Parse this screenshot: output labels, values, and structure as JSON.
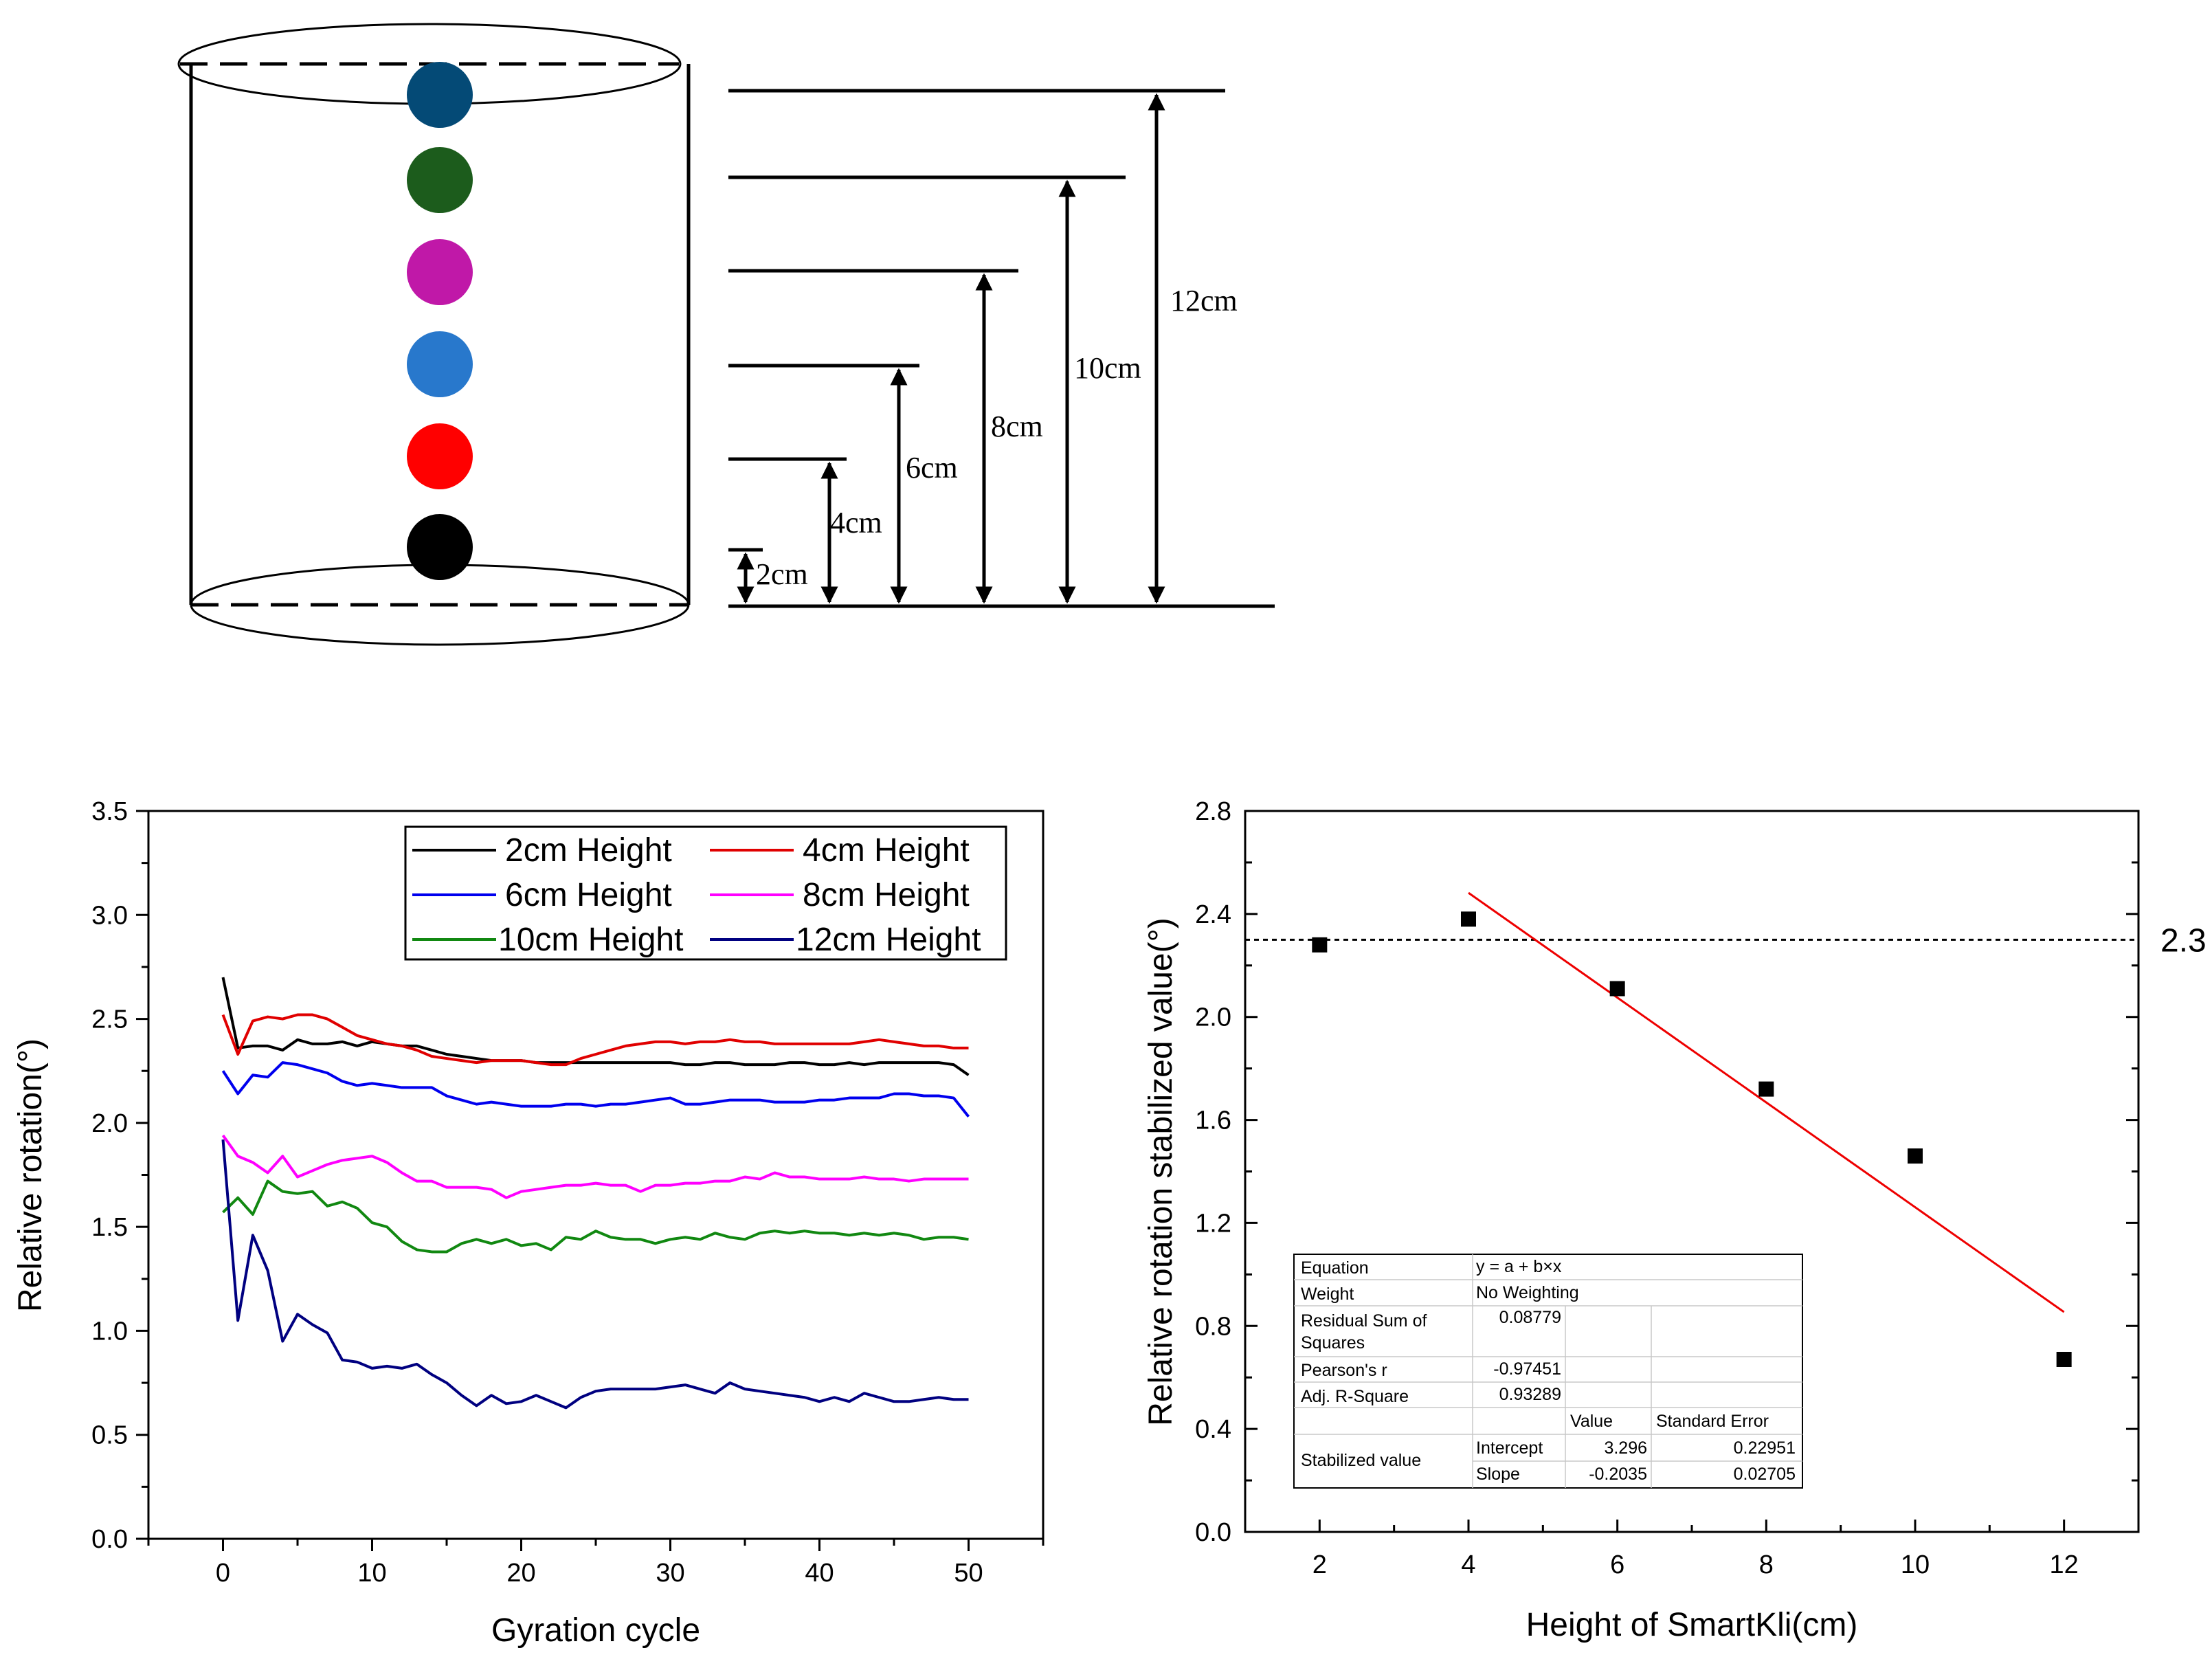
{
  "diagram": {
    "ball_colors": [
      "#044a76",
      "#1c5c1c",
      "#c018a8",
      "#2878cc",
      "#ff0000",
      "#000000"
    ],
    "height_labels": [
      "2cm",
      "4cm",
      "6cm",
      "8cm",
      "10cm",
      "12cm"
    ]
  },
  "chart_data": [
    {
      "type": "line",
      "xlabel": "Gyration cycle",
      "ylabel": "Relative rotation(°)",
      "xlim": [
        -5,
        55
      ],
      "ylim": [
        0,
        3.5
      ],
      "xticks": [
        0,
        10,
        20,
        30,
        40,
        50
      ],
      "yticks": [
        0.0,
        0.5,
        1.0,
        1.5,
        2.0,
        2.5,
        3.0,
        3.5
      ],
      "x_tick_labels": [
        "0",
        "10",
        "20",
        "30",
        "40",
        "50"
      ],
      "y_tick_labels": [
        "0.0",
        "0.5",
        "1.0",
        "1.5",
        "2.0",
        "2.5",
        "3.0",
        "3.5"
      ],
      "legend_position": "top-right",
      "series": [
        {
          "name": "2cm Height",
          "color": "#000000",
          "values": [
            2.7,
            2.36,
            2.37,
            2.37,
            2.35,
            2.4,
            2.38,
            2.38,
            2.39,
            2.37,
            2.39,
            2.38,
            2.37,
            2.37,
            2.35,
            2.33,
            2.32,
            2.31,
            2.3,
            2.3,
            2.3,
            2.29,
            2.29,
            2.29,
            2.29,
            2.29,
            2.29,
            2.29,
            2.29,
            2.29,
            2.29,
            2.28,
            2.28,
            2.29,
            2.29,
            2.28,
            2.28,
            2.28,
            2.29,
            2.29,
            2.28,
            2.28,
            2.29,
            2.28,
            2.29,
            2.29,
            2.29,
            2.29,
            2.29,
            2.28,
            2.23
          ]
        },
        {
          "name": "4cm Height",
          "color": "#e00000",
          "values": [
            2.52,
            2.33,
            2.49,
            2.51,
            2.5,
            2.52,
            2.52,
            2.5,
            2.46,
            2.42,
            2.4,
            2.38,
            2.37,
            2.35,
            2.32,
            2.31,
            2.3,
            2.29,
            2.3,
            2.3,
            2.3,
            2.29,
            2.28,
            2.28,
            2.31,
            2.33,
            2.35,
            2.37,
            2.38,
            2.39,
            2.39,
            2.38,
            2.39,
            2.39,
            2.4,
            2.39,
            2.39,
            2.38,
            2.38,
            2.38,
            2.38,
            2.38,
            2.38,
            2.39,
            2.4,
            2.39,
            2.38,
            2.37,
            2.37,
            2.36,
            2.36
          ]
        },
        {
          "name": "6cm Height",
          "color": "#0000ee",
          "values": [
            2.25,
            2.14,
            2.23,
            2.22,
            2.29,
            2.28,
            2.26,
            2.24,
            2.2,
            2.18,
            2.19,
            2.18,
            2.17,
            2.17,
            2.17,
            2.13,
            2.11,
            2.09,
            2.1,
            2.09,
            2.08,
            2.08,
            2.08,
            2.09,
            2.09,
            2.08,
            2.09,
            2.09,
            2.1,
            2.11,
            2.12,
            2.09,
            2.09,
            2.1,
            2.11,
            2.11,
            2.11,
            2.1,
            2.1,
            2.1,
            2.11,
            2.11,
            2.12,
            2.12,
            2.12,
            2.14,
            2.14,
            2.13,
            2.13,
            2.12,
            2.03
          ]
        },
        {
          "name": "8cm Height",
          "color": "#ff00ff",
          "values": [
            1.94,
            1.84,
            1.81,
            1.76,
            1.84,
            1.74,
            1.77,
            1.8,
            1.82,
            1.83,
            1.84,
            1.81,
            1.76,
            1.72,
            1.72,
            1.69,
            1.69,
            1.69,
            1.68,
            1.64,
            1.67,
            1.68,
            1.69,
            1.7,
            1.7,
            1.71,
            1.7,
            1.7,
            1.67,
            1.7,
            1.7,
            1.71,
            1.71,
            1.72,
            1.72,
            1.74,
            1.73,
            1.76,
            1.74,
            1.74,
            1.73,
            1.73,
            1.73,
            1.74,
            1.73,
            1.73,
            1.72,
            1.73,
            1.73,
            1.73,
            1.73
          ]
        },
        {
          "name": "10cm Height",
          "color": "#118811",
          "values": [
            1.57,
            1.64,
            1.56,
            1.72,
            1.67,
            1.66,
            1.67,
            1.6,
            1.62,
            1.59,
            1.52,
            1.5,
            1.43,
            1.39,
            1.38,
            1.38,
            1.42,
            1.44,
            1.42,
            1.44,
            1.41,
            1.42,
            1.39,
            1.45,
            1.44,
            1.48,
            1.45,
            1.44,
            1.44,
            1.42,
            1.44,
            1.45,
            1.44,
            1.47,
            1.45,
            1.44,
            1.47,
            1.48,
            1.47,
            1.48,
            1.47,
            1.47,
            1.46,
            1.47,
            1.46,
            1.47,
            1.46,
            1.44,
            1.45,
            1.45,
            1.44
          ]
        },
        {
          "name": "12cm Height",
          "color": "#000080",
          "values": [
            1.92,
            1.05,
            1.46,
            1.29,
            0.95,
            1.08,
            1.03,
            0.99,
            0.86,
            0.85,
            0.82,
            0.83,
            0.82,
            0.84,
            0.79,
            0.75,
            0.69,
            0.64,
            0.69,
            0.65,
            0.66,
            0.69,
            0.66,
            0.63,
            0.68,
            0.71,
            0.72,
            0.72,
            0.72,
            0.72,
            0.73,
            0.74,
            0.72,
            0.7,
            0.75,
            0.72,
            0.71,
            0.7,
            0.69,
            0.68,
            0.66,
            0.68,
            0.66,
            0.7,
            0.68,
            0.66,
            0.66,
            0.67,
            0.68,
            0.67,
            0.67
          ]
        }
      ]
    },
    {
      "type": "scatter",
      "xlabel": "Height of SmartKli(cm)",
      "ylabel": "Relative rotation stabilized value(°)",
      "xlim": [
        1,
        13
      ],
      "ylim": [
        0,
        2.8
      ],
      "xticks": [
        2,
        4,
        6,
        8,
        10,
        12
      ],
      "yticks": [
        0.0,
        0.4,
        0.8,
        1.2,
        1.6,
        2.0,
        2.4,
        2.8
      ],
      "x_tick_labels": [
        "2",
        "4",
        "6",
        "8",
        "10",
        "12"
      ],
      "y_tick_labels": [
        "0.0",
        "0.4",
        "0.8",
        "1.2",
        "1.6",
        "2.0",
        "2.4",
        "2.8"
      ],
      "points": {
        "x": [
          2,
          4,
          6,
          8,
          10,
          12
        ],
        "y": [
          2.28,
          2.38,
          2.11,
          1.72,
          1.46,
          0.67
        ]
      },
      "fit": {
        "intercept": 3.296,
        "slope": -0.2035,
        "x_range": [
          4,
          12
        ],
        "color": "#ee0000"
      },
      "reference_line": {
        "y": 2.3,
        "label": "2.3"
      },
      "stats_table": {
        "equation_label": "Equation",
        "equation": "y = a + b×x",
        "weight_label": "Weight",
        "weight": "No Weighting",
        "rss_label_1": "Residual Sum of",
        "rss_label_2": "Squares",
        "rss": "0.08779",
        "pearson_label": "Pearson's r",
        "pearson": "-0.97451",
        "adjr_label": "Adj. R-Square",
        "adjr": "0.93289",
        "value_header": "Value",
        "error_header": "Standard Error",
        "group_label": "Stabilized value",
        "intercept_label": "Intercept",
        "intercept_value": "3.296",
        "intercept_error": "0.22951",
        "slope_label": "Slope",
        "slope_value": "-0.2035",
        "slope_error": "0.02705"
      }
    }
  ]
}
